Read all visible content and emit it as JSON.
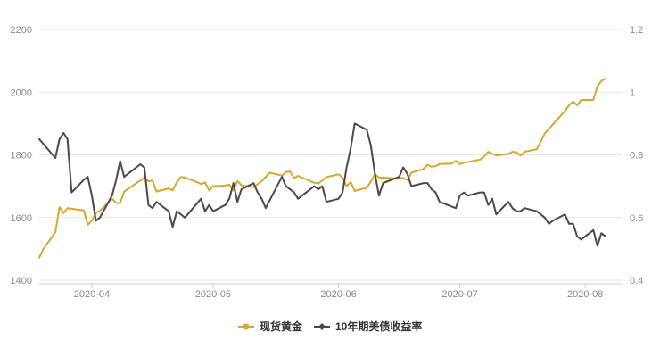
{
  "chart_data": {
    "type": "line",
    "title": "",
    "x_axis": {
      "type": "date",
      "range": [
        "2020-03-19",
        "2020-08-10"
      ],
      "ticks": [
        {
          "label": "2020-04",
          "date": "2020-04-01"
        },
        {
          "label": "2020-05",
          "date": "2020-05-01"
        },
        {
          "label": "2020-06",
          "date": "2020-06-01"
        },
        {
          "label": "2020-07",
          "date": "2020-07-01"
        },
        {
          "label": "2020-08",
          "date": "2020-08-01"
        }
      ]
    },
    "y_axis_left": {
      "range": [
        1400,
        2200
      ],
      "ticks": [
        "1400",
        "1600",
        "1800",
        "2000",
        "2200"
      ]
    },
    "y_axis_right": {
      "range": [
        0.4,
        1.2
      ],
      "ticks": [
        "0.4",
        "0.6",
        "0.8",
        "1",
        "1.2"
      ]
    },
    "grid": "horizontal",
    "legend_position": "bottom-center",
    "series": [
      {
        "name": "现货黄金",
        "axis": "left",
        "color": "#d9a72a",
        "marker": "circle",
        "points": [
          [
            "2020-03-19",
            1472
          ],
          [
            "2020-03-20",
            1499
          ],
          [
            "2020-03-23",
            1553
          ],
          [
            "2020-03-24",
            1633
          ],
          [
            "2020-03-25",
            1614
          ],
          [
            "2020-03-26",
            1630
          ],
          [
            "2020-03-27",
            1628
          ],
          [
            "2020-03-30",
            1623
          ],
          [
            "2020-03-31",
            1577
          ],
          [
            "2020-04-01",
            1590
          ],
          [
            "2020-04-02",
            1614
          ],
          [
            "2020-04-03",
            1621
          ],
          [
            "2020-04-06",
            1660
          ],
          [
            "2020-04-07",
            1647
          ],
          [
            "2020-04-08",
            1646
          ],
          [
            "2020-04-09",
            1683
          ],
          [
            "2020-04-14",
            1727
          ],
          [
            "2020-04-15",
            1716
          ],
          [
            "2020-04-16",
            1718
          ],
          [
            "2020-04-17",
            1683
          ],
          [
            "2020-04-20",
            1693
          ],
          [
            "2020-04-21",
            1687
          ],
          [
            "2020-04-22",
            1713
          ],
          [
            "2020-04-23",
            1729
          ],
          [
            "2020-04-24",
            1728
          ],
          [
            "2020-04-27",
            1713
          ],
          [
            "2020-04-28",
            1707
          ],
          [
            "2020-04-29",
            1712
          ],
          [
            "2020-04-30",
            1686
          ],
          [
            "2020-05-01",
            1700
          ],
          [
            "2020-05-04",
            1702
          ],
          [
            "2020-05-05",
            1705
          ],
          [
            "2020-05-06",
            1686
          ],
          [
            "2020-05-07",
            1717
          ],
          [
            "2020-05-08",
            1703
          ],
          [
            "2020-05-11",
            1697
          ],
          [
            "2020-05-13",
            1716
          ],
          [
            "2020-05-15",
            1743
          ],
          [
            "2020-05-18",
            1734
          ],
          [
            "2020-05-19",
            1745
          ],
          [
            "2020-05-20",
            1747
          ],
          [
            "2020-05-21",
            1726
          ],
          [
            "2020-05-22",
            1733
          ],
          [
            "2020-05-26",
            1711
          ],
          [
            "2020-05-27",
            1709
          ],
          [
            "2020-05-28",
            1718
          ],
          [
            "2020-05-29",
            1729
          ],
          [
            "2020-06-01",
            1738
          ],
          [
            "2020-06-02",
            1727
          ],
          [
            "2020-06-03",
            1700
          ],
          [
            "2020-06-04",
            1713
          ],
          [
            "2020-06-05",
            1685
          ],
          [
            "2020-06-08",
            1695
          ],
          [
            "2020-06-09",
            1715
          ],
          [
            "2020-06-10",
            1738
          ],
          [
            "2020-06-11",
            1728
          ],
          [
            "2020-06-15",
            1725
          ],
          [
            "2020-06-16",
            1727
          ],
          [
            "2020-06-17",
            1726
          ],
          [
            "2020-06-18",
            1720
          ],
          [
            "2020-06-19",
            1743
          ],
          [
            "2020-06-22",
            1755
          ],
          [
            "2020-06-23",
            1768
          ],
          [
            "2020-06-24",
            1762
          ],
          [
            "2020-06-25",
            1764
          ],
          [
            "2020-06-26",
            1771
          ],
          [
            "2020-06-29",
            1772
          ],
          [
            "2020-06-30",
            1781
          ],
          [
            "2020-07-01",
            1770
          ],
          [
            "2020-07-02",
            1775
          ],
          [
            "2020-07-06",
            1785
          ],
          [
            "2020-07-07",
            1795
          ],
          [
            "2020-07-08",
            1810
          ],
          [
            "2020-07-09",
            1803
          ],
          [
            "2020-07-10",
            1798
          ],
          [
            "2020-07-13",
            1803
          ],
          [
            "2020-07-14",
            1810
          ],
          [
            "2020-07-15",
            1808
          ],
          [
            "2020-07-16",
            1798
          ],
          [
            "2020-07-17",
            1810
          ],
          [
            "2020-07-20",
            1818
          ],
          [
            "2020-07-21",
            1842
          ],
          [
            "2020-07-22",
            1868
          ],
          [
            "2020-07-27",
            1940
          ],
          [
            "2020-07-28",
            1958
          ],
          [
            "2020-07-29",
            1970
          ],
          [
            "2020-07-30",
            1958
          ],
          [
            "2020-07-31",
            1975
          ],
          [
            "2020-08-03",
            1975
          ],
          [
            "2020-08-04",
            2018
          ],
          [
            "2020-08-05",
            2036
          ],
          [
            "2020-08-06",
            2043
          ]
        ]
      },
      {
        "name": "10年期美债收益率",
        "axis": "right",
        "color": "#4a4a4a",
        "marker": "diamond",
        "points": [
          [
            "2020-03-19",
            0.85
          ],
          [
            "2020-03-23",
            0.79
          ],
          [
            "2020-03-24",
            0.85
          ],
          [
            "2020-03-25",
            0.87
          ],
          [
            "2020-03-26",
            0.85
          ],
          [
            "2020-03-27",
            0.68
          ],
          [
            "2020-03-30",
            0.72
          ],
          [
            "2020-03-31",
            0.73
          ],
          [
            "2020-04-01",
            0.67
          ],
          [
            "2020-04-02",
            0.59
          ],
          [
            "2020-04-03",
            0.6
          ],
          [
            "2020-04-06",
            0.67
          ],
          [
            "2020-04-07",
            0.72
          ],
          [
            "2020-04-08",
            0.78
          ],
          [
            "2020-04-09",
            0.73
          ],
          [
            "2020-04-13",
            0.77
          ],
          [
            "2020-04-14",
            0.76
          ],
          [
            "2020-04-15",
            0.64
          ],
          [
            "2020-04-16",
            0.63
          ],
          [
            "2020-04-17",
            0.65
          ],
          [
            "2020-04-20",
            0.62
          ],
          [
            "2020-04-21",
            0.57
          ],
          [
            "2020-04-22",
            0.62
          ],
          [
            "2020-04-23",
            0.61
          ],
          [
            "2020-04-24",
            0.6
          ],
          [
            "2020-04-28",
            0.66
          ],
          [
            "2020-04-29",
            0.62
          ],
          [
            "2020-04-30",
            0.64
          ],
          [
            "2020-05-01",
            0.62
          ],
          [
            "2020-05-04",
            0.64
          ],
          [
            "2020-05-05",
            0.66
          ],
          [
            "2020-05-06",
            0.71
          ],
          [
            "2020-05-07",
            0.65
          ],
          [
            "2020-05-08",
            0.69
          ],
          [
            "2020-05-11",
            0.71
          ],
          [
            "2020-05-12",
            0.68
          ],
          [
            "2020-05-13",
            0.66
          ],
          [
            "2020-05-14",
            0.63
          ],
          [
            "2020-05-18",
            0.73
          ],
          [
            "2020-05-19",
            0.7
          ],
          [
            "2020-05-20",
            0.69
          ],
          [
            "2020-05-21",
            0.68
          ],
          [
            "2020-05-22",
            0.66
          ],
          [
            "2020-05-26",
            0.7
          ],
          [
            "2020-05-27",
            0.69
          ],
          [
            "2020-05-28",
            0.7
          ],
          [
            "2020-05-29",
            0.65
          ],
          [
            "2020-06-01",
            0.66
          ],
          [
            "2020-06-02",
            0.68
          ],
          [
            "2020-06-03",
            0.76
          ],
          [
            "2020-06-04",
            0.82
          ],
          [
            "2020-06-05",
            0.9
          ],
          [
            "2020-06-08",
            0.88
          ],
          [
            "2020-06-09",
            0.83
          ],
          [
            "2020-06-10",
            0.74
          ],
          [
            "2020-06-11",
            0.67
          ],
          [
            "2020-06-12",
            0.71
          ],
          [
            "2020-06-16",
            0.73
          ],
          [
            "2020-06-17",
            0.76
          ],
          [
            "2020-06-18",
            0.74
          ],
          [
            "2020-06-19",
            0.7
          ],
          [
            "2020-06-22",
            0.71
          ],
          [
            "2020-06-23",
            0.71
          ],
          [
            "2020-06-24",
            0.69
          ],
          [
            "2020-06-25",
            0.68
          ],
          [
            "2020-06-26",
            0.65
          ],
          [
            "2020-06-30",
            0.63
          ],
          [
            "2020-07-01",
            0.67
          ],
          [
            "2020-07-02",
            0.68
          ],
          [
            "2020-07-03",
            0.67
          ],
          [
            "2020-07-06",
            0.68
          ],
          [
            "2020-07-07",
            0.68
          ],
          [
            "2020-07-08",
            0.64
          ],
          [
            "2020-07-09",
            0.66
          ],
          [
            "2020-07-10",
            0.61
          ],
          [
            "2020-07-13",
            0.65
          ],
          [
            "2020-07-14",
            0.63
          ],
          [
            "2020-07-15",
            0.62
          ],
          [
            "2020-07-16",
            0.62
          ],
          [
            "2020-07-17",
            0.63
          ],
          [
            "2020-07-20",
            0.62
          ],
          [
            "2020-07-21",
            0.61
          ],
          [
            "2020-07-22",
            0.6
          ],
          [
            "2020-07-23",
            0.58
          ],
          [
            "2020-07-24",
            0.59
          ],
          [
            "2020-07-27",
            0.61
          ],
          [
            "2020-07-28",
            0.58
          ],
          [
            "2020-07-29",
            0.58
          ],
          [
            "2020-07-30",
            0.54
          ],
          [
            "2020-07-31",
            0.53
          ],
          [
            "2020-08-03",
            0.56
          ],
          [
            "2020-08-04",
            0.51
          ],
          [
            "2020-08-05",
            0.55
          ],
          [
            "2020-08-06",
            0.54
          ]
        ]
      }
    ]
  }
}
